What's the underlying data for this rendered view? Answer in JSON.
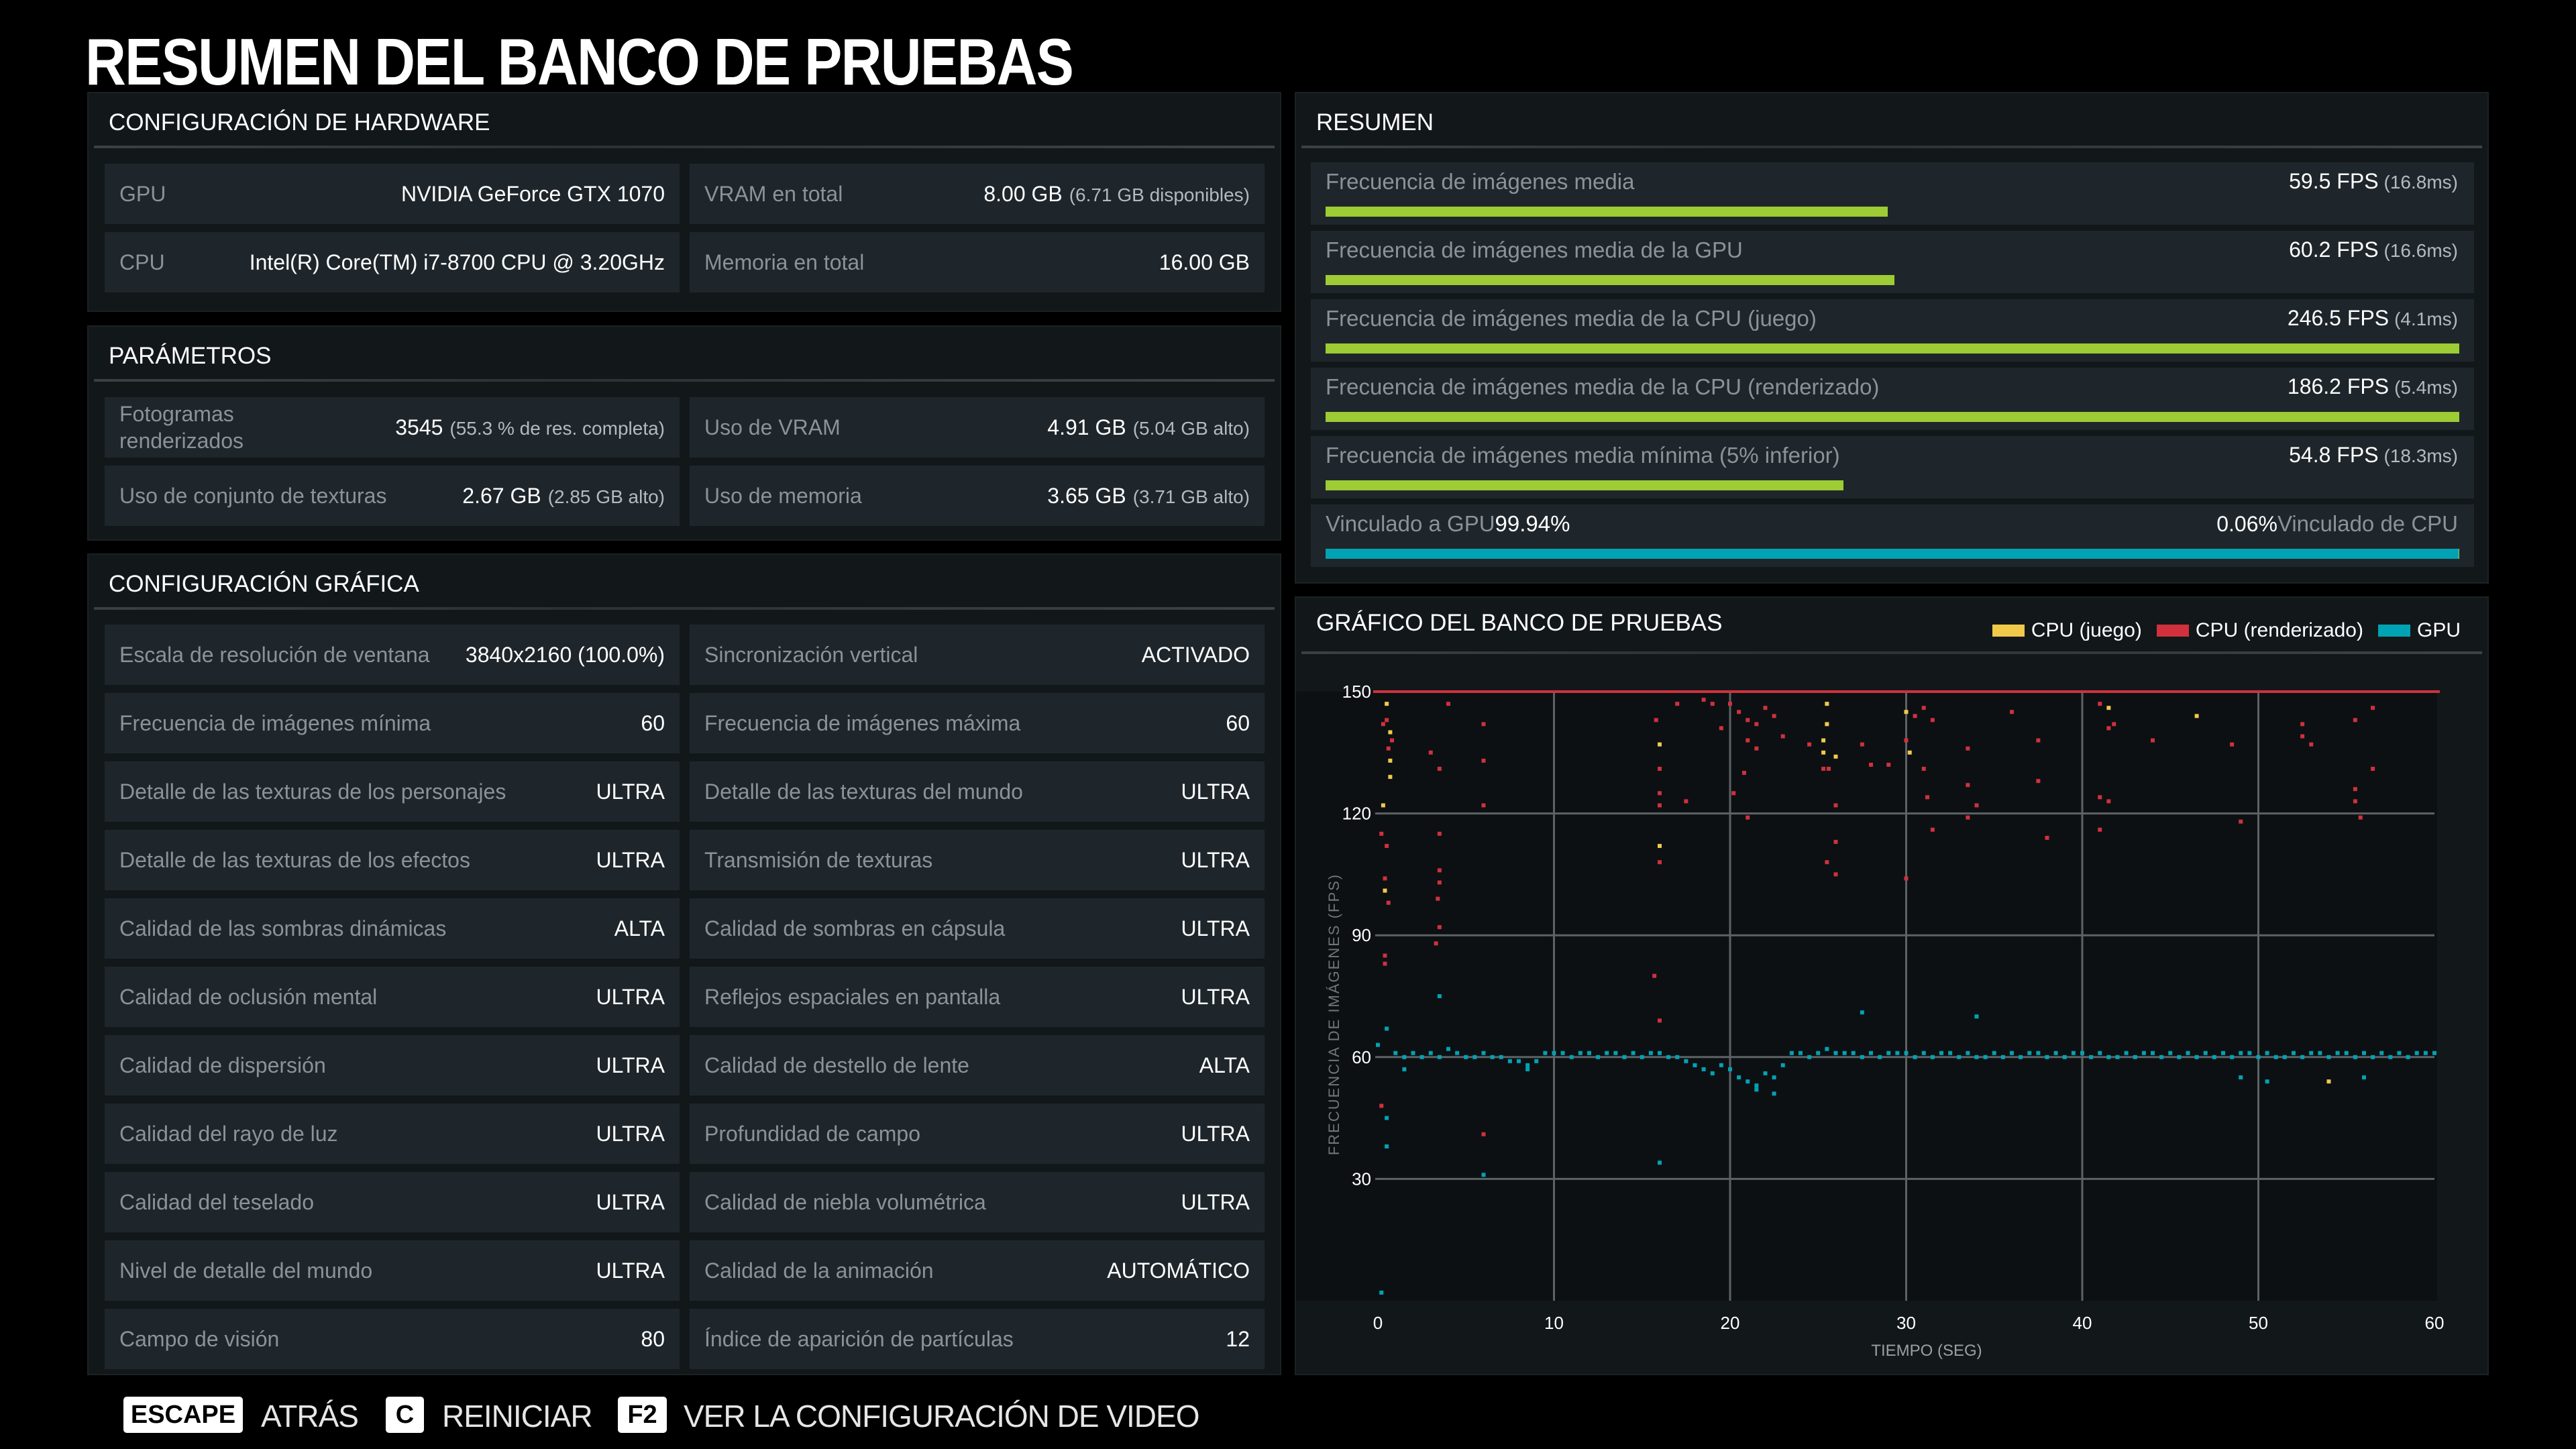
{
  "title": "RESUMEN DEL BANCO DE PRUEBAS",
  "hardware": {
    "title": "CONFIGURACIÓN DE HARDWARE",
    "items": [
      {
        "label": "GPU",
        "value": "NVIDIA GeForce GTX 1070",
        "sub": ""
      },
      {
        "label": "VRAM en total",
        "value": "8.00 GB",
        "sub": "(6.71 GB disponibles)"
      },
      {
        "label": "CPU",
        "value": "Intel(R) Core(TM) i7-8700 CPU @ 3.20GHz",
        "sub": ""
      },
      {
        "label": "Memoria en total",
        "value": "16.00 GB",
        "sub": ""
      }
    ]
  },
  "params": {
    "title": "PARÁMETROS",
    "items": [
      {
        "label": "Fotogramas renderizados",
        "value": "3545",
        "sub": "(55.3 % de res. completa)"
      },
      {
        "label": "Uso de VRAM",
        "value": "4.91 GB",
        "sub": "(5.04 GB alto)"
      },
      {
        "label": "Uso de conjunto de texturas",
        "value": "2.67 GB",
        "sub": "(2.85 GB alto)"
      },
      {
        "label": "Uso de memoria",
        "value": "3.65 GB",
        "sub": "(3.71 GB alto)"
      }
    ]
  },
  "graphics": {
    "title": "CONFIGURACIÓN GRÁFICA",
    "items": [
      {
        "label": "Escala de resolución de ventana",
        "value": "3840x2160 (100.0%)"
      },
      {
        "label": "Sincronización vertical",
        "value": "ACTIVADO"
      },
      {
        "label": "Frecuencia de imágenes mínima",
        "value": "60"
      },
      {
        "label": "Frecuencia de imágenes máxima",
        "value": "60"
      },
      {
        "label": "Detalle de las texturas de los personajes",
        "value": "ULTRA"
      },
      {
        "label": "Detalle de las texturas del mundo",
        "value": "ULTRA"
      },
      {
        "label": "Detalle de las texturas de los efectos",
        "value": "ULTRA"
      },
      {
        "label": "Transmisión de texturas",
        "value": "ULTRA"
      },
      {
        "label": "Calidad de las sombras dinámicas",
        "value": "ALTA"
      },
      {
        "label": "Calidad de sombras en cápsula",
        "value": "ULTRA"
      },
      {
        "label": "Calidad de oclusión mental",
        "value": "ULTRA"
      },
      {
        "label": "Reflejos espaciales en pantalla",
        "value": "ULTRA"
      },
      {
        "label": "Calidad de dispersión",
        "value": "ULTRA"
      },
      {
        "label": "Calidad de destello de lente",
        "value": "ALTA"
      },
      {
        "label": "Calidad del rayo de luz",
        "value": "ULTRA"
      },
      {
        "label": "Profundidad de campo",
        "value": "ULTRA"
      },
      {
        "label": "Calidad del teselado",
        "value": "ULTRA"
      },
      {
        "label": "Calidad de niebla volumétrica",
        "value": "ULTRA"
      },
      {
        "label": "Nivel de detalle del mundo",
        "value": "ULTRA"
      },
      {
        "label": "Calidad de la animación",
        "value": "AUTOMÁTICO"
      },
      {
        "label": "Campo de visión",
        "value": "80"
      },
      {
        "label": "Índice de aparición de partículas",
        "value": "12"
      }
    ]
  },
  "summary": {
    "title": "RESUMEN",
    "bar_color": "#9dcc35",
    "rows": [
      {
        "label": "Frecuencia de imágenes media",
        "value": "59.5 FPS",
        "sub": "(16.8ms)",
        "fill": 0.496
      },
      {
        "label": "Frecuencia de imágenes media de la GPU",
        "value": "60.2 FPS",
        "sub": "(16.6ms)",
        "fill": 0.502
      },
      {
        "label": "Frecuencia de imágenes media de la CPU (juego)",
        "value": "246.5 FPS",
        "sub": "(4.1ms)",
        "fill": 1.0
      },
      {
        "label": "Frecuencia de imágenes media de la CPU (renderizado)",
        "value": "186.2 FPS",
        "sub": "(5.4ms)",
        "fill": 1.0
      },
      {
        "label": "Frecuencia de imágenes media mínima (5% inferior)",
        "value": "54.8 FPS",
        "sub": "(18.3ms)",
        "fill": 0.457
      }
    ],
    "bound": {
      "gpu_label": "Vinculado a GPU",
      "gpu_value": "99.94%",
      "cpu_value": "0.06%",
      "cpu_label": "Vinculado de CPU",
      "gpu_fraction": 0.9994,
      "gpu_color": "#00a3b4",
      "cpu_color": "#9dcc35"
    }
  },
  "chart_data": {
    "type": "scatter",
    "title": "GRÁFICO DEL BANCO DE PRUEBAS",
    "xlabel": "TIEMPO (SEG)",
    "ylabel": "FRECUENCIA DE IMÁGENES (FPS)",
    "xlim": [
      0,
      60
    ],
    "ylim": [
      0,
      150
    ],
    "xticks": [
      "0",
      "10",
      "20",
      "30",
      "40",
      "50",
      "60"
    ],
    "yticks": [
      "30",
      "60",
      "90",
      "120",
      "150"
    ],
    "grid": true,
    "legend": "top-right",
    "series": [
      {
        "name": "CPU (juego)",
        "color": "#f0c94a",
        "points": [
          [
            0.5,
            147
          ],
          [
            0.7,
            140
          ],
          [
            0.7,
            133
          ],
          [
            0.7,
            129
          ],
          [
            0.3,
            122
          ],
          [
            0.4,
            101
          ],
          [
            16,
            137
          ],
          [
            16,
            112
          ],
          [
            25.5,
            147
          ],
          [
            25.5,
            142
          ],
          [
            25.3,
            138
          ],
          [
            25.3,
            135
          ],
          [
            26,
            134
          ],
          [
            30,
            145
          ],
          [
            30.2,
            135
          ],
          [
            41.5,
            146
          ],
          [
            46.5,
            144
          ],
          [
            54,
            54
          ]
        ]
      },
      {
        "name": "CPU (renderizado)",
        "color": "#d0313d",
        "cap": 150,
        "cap_step": 0.5,
        "points": [
          [
            0.3,
            142
          ],
          [
            0.5,
            143
          ],
          [
            0.8,
            138
          ],
          [
            0.6,
            136
          ],
          [
            0.2,
            115
          ],
          [
            0.5,
            112
          ],
          [
            0.4,
            104
          ],
          [
            0.6,
            98
          ],
          [
            0.4,
            85
          ],
          [
            0.4,
            83
          ],
          [
            0.2,
            48
          ],
          [
            3,
            135
          ],
          [
            3.5,
            131
          ],
          [
            3.5,
            115
          ],
          [
            3.5,
            106
          ],
          [
            3.5,
            103
          ],
          [
            3.4,
            99
          ],
          [
            3.5,
            92
          ],
          [
            3.3,
            88
          ],
          [
            4,
            147
          ],
          [
            6,
            142
          ],
          [
            6,
            133
          ],
          [
            6,
            122
          ],
          [
            6,
            41
          ],
          [
            15.8,
            143
          ],
          [
            16,
            131
          ],
          [
            16,
            125
          ],
          [
            16,
            122
          ],
          [
            16,
            108
          ],
          [
            15.7,
            80
          ],
          [
            16,
            69
          ],
          [
            17,
            147
          ],
          [
            17.5,
            123
          ],
          [
            18.5,
            148
          ],
          [
            19,
            147
          ],
          [
            19.5,
            141
          ],
          [
            20,
            147
          ],
          [
            20.5,
            145
          ],
          [
            21,
            143
          ],
          [
            21.5,
            142
          ],
          [
            22,
            146
          ],
          [
            22.5,
            144
          ],
          [
            20.2,
            125
          ],
          [
            21,
            138
          ],
          [
            21.5,
            136
          ],
          [
            20.8,
            130
          ],
          [
            21,
            119
          ],
          [
            23,
            139
          ],
          [
            24.5,
            137
          ],
          [
            25.3,
            131
          ],
          [
            25.6,
            131
          ],
          [
            26,
            113
          ],
          [
            26,
            105
          ],
          [
            25.5,
            108
          ],
          [
            26,
            122
          ],
          [
            27.5,
            137
          ],
          [
            28,
            132
          ],
          [
            29,
            132
          ],
          [
            30,
            138
          ],
          [
            30,
            104
          ],
          [
            30.5,
            144
          ],
          [
            31,
            146
          ],
          [
            31.5,
            143
          ],
          [
            31,
            131
          ],
          [
            31.2,
            124
          ],
          [
            31.5,
            116
          ],
          [
            33.5,
            136
          ],
          [
            33.5,
            127
          ],
          [
            33.5,
            119
          ],
          [
            34,
            122
          ],
          [
            36,
            145
          ],
          [
            37.5,
            138
          ],
          [
            37.5,
            128
          ],
          [
            38,
            114
          ],
          [
            41,
            147
          ],
          [
            41.5,
            141
          ],
          [
            41.8,
            142
          ],
          [
            41,
            124
          ],
          [
            41.5,
            123
          ],
          [
            41,
            116
          ],
          [
            44,
            138
          ],
          [
            48.5,
            137
          ],
          [
            49,
            118
          ],
          [
            52.5,
            142
          ],
          [
            52.5,
            139
          ],
          [
            53,
            137
          ],
          [
            55.5,
            143
          ],
          [
            55.5,
            126
          ],
          [
            55.5,
            123
          ],
          [
            55.8,
            119
          ],
          [
            56.5,
            146
          ],
          [
            56.5,
            131
          ]
        ]
      },
      {
        "name": "GPU",
        "color": "#00a3b4",
        "x_start": 0,
        "x_step": 0.5,
        "values": [
          63,
          67,
          61,
          60,
          61,
          60,
          61,
          60,
          62,
          61,
          60,
          60,
          61,
          60,
          60,
          59,
          59,
          58,
          59,
          61,
          61,
          61,
          60,
          61,
          61,
          60,
          61,
          61,
          60,
          61,
          60,
          61,
          61,
          60,
          60,
          59,
          58,
          57,
          56,
          58,
          57,
          55,
          54,
          53,
          56,
          55,
          58,
          61,
          61,
          60,
          61,
          62,
          61,
          61,
          61,
          60,
          61,
          60,
          61,
          61,
          61,
          60,
          61,
          60,
          61,
          61,
          60,
          61,
          60,
          60,
          61,
          60,
          61,
          60,
          61,
          61,
          60,
          61,
          60,
          61,
          61,
          60,
          61,
          60,
          60,
          61,
          60,
          61,
          61,
          60,
          61,
          60,
          61,
          60,
          61,
          60,
          61,
          60,
          61,
          61,
          60,
          61,
          60,
          60,
          61,
          60,
          61,
          61,
          60,
          61,
          61,
          60,
          61,
          60,
          61,
          60,
          61,
          60,
          61,
          61,
          61
        ],
        "outliers": [
          [
            3.5,
            75
          ],
          [
            27.5,
            71
          ],
          [
            34,
            70
          ],
          [
            0.5,
            45
          ],
          [
            0.5,
            38
          ],
          [
            6,
            31
          ],
          [
            16,
            34
          ],
          [
            0.2,
            2
          ],
          [
            49,
            55
          ],
          [
            50.5,
            54
          ],
          [
            56,
            55
          ],
          [
            1.5,
            57
          ],
          [
            8.5,
            57
          ],
          [
            22.5,
            51
          ],
          [
            21.5,
            52
          ]
        ]
      }
    ]
  },
  "footer": {
    "items": [
      {
        "key": "ESCAPE",
        "label": "ATRÁS"
      },
      {
        "key": "C",
        "label": "REINICIAR"
      },
      {
        "key": "F2",
        "label": "VER LA CONFIGURACIÓN DE VIDEO"
      }
    ]
  }
}
